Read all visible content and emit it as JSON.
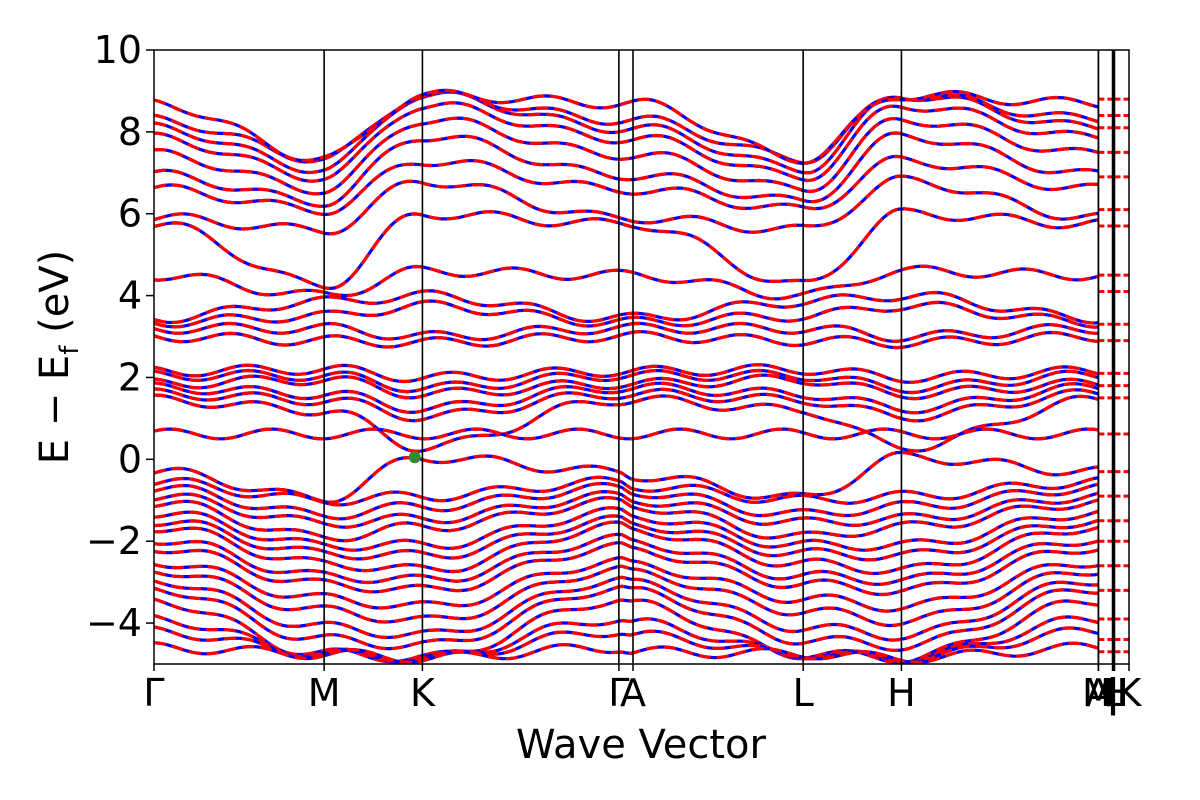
{
  "chart_data": {
    "type": "line",
    "xlabel": "Wave Vector",
    "ylabel_main": "E − E",
    "ylabel_sub": "f",
    "ylabel_unit": " (eV)",
    "ylim": [
      -5,
      10
    ],
    "yticks": [
      10,
      8,
      6,
      4,
      2,
      0,
      -2,
      -4
    ],
    "ytick_labels": [
      "10",
      "8",
      "6",
      "4",
      "2",
      "0",
      "−2",
      "−4"
    ],
    "high_symmetry_points": [
      {
        "label": "Γ",
        "k": 0.0
      },
      {
        "label": "M",
        "k": 0.1745
      },
      {
        "label": "K",
        "k": 0.2753
      },
      {
        "label": "Γ",
        "k": 0.4768
      },
      {
        "label": "A",
        "k": 0.4913
      },
      {
        "label": "L",
        "k": 0.6658
      },
      {
        "label": "H",
        "k": 0.7666
      },
      {
        "label": "A",
        "k": 0.9686
      },
      {
        "label": "M",
        "k": 0.9686
      },
      {
        "label": "|",
        "k": 0.9831
      },
      {
        "label": "L",
        "k": 0.9841
      },
      {
        "label": "|",
        "k": 0.9841
      },
      {
        "label": "H",
        "k": 0.9851
      },
      {
        "label": "K",
        "k": 1.0
      }
    ],
    "xlim": [
      0,
      1
    ],
    "grid": false,
    "series": [
      {
        "color": "#0000ff",
        "style": "solid"
      },
      {
        "color": "#ff0000",
        "style": "dashed"
      }
    ],
    "marker": {
      "x": 0.2674,
      "y": 0.05,
      "color": "#2e8b2e"
    },
    "flat_band_energy": 0.62,
    "band_energies": {
      "valence_at_gamma": [
        -0.3,
        -0.55,
        -0.7,
        -0.9,
        -1.05,
        -1.3,
        -1.5,
        -1.65,
        -1.95,
        -2.15,
        -2.5,
        -2.7,
        -2.95,
        -3.15,
        -3.45,
        -3.9,
        -4.2,
        -4.6
      ],
      "conduction_at_gamma": [
        1.45,
        1.6,
        1.75,
        1.85,
        2.05,
        2.15,
        3.0,
        3.2,
        3.35,
        3.45,
        4.5,
        5.75,
        5.9,
        6.6,
        6.95,
        7.45,
        7.85,
        8.1,
        8.3,
        8.7
      ],
      "valence_at_M": [
        -0.95,
        -1.0,
        -1.35,
        -1.55,
        -1.9,
        -2.1,
        -2.3,
        -2.55,
        -2.85,
        -3.05,
        -3.4,
        -3.7,
        -4.1,
        -4.4,
        -4.75
      ],
      "conduction_at_M": [
        1.2,
        1.45,
        1.6,
        1.95,
        2.05,
        2.2,
        2.9,
        3.2,
        3.5,
        3.85,
        4.0,
        4.25,
        5.6,
        6.1,
        6.3,
        6.6,
        6.9,
        7.1,
        7.35
      ],
      "valence_at_K": [
        0.05,
        -0.9,
        -1.15,
        -1.45,
        -1.65,
        -2.1,
        -2.35,
        -2.7,
        -2.95,
        -3.2,
        -3.6,
        -3.95,
        -4.3,
        -4.55,
        -4.85
      ],
      "conduction_at_K": [
        0.3,
        1.05,
        1.25,
        1.6,
        1.75,
        2.0,
        2.85,
        3.0,
        3.75,
        4.0,
        4.6,
        6.0,
        6.8,
        7.3,
        7.9,
        8.3,
        8.65,
        8.9
      ]
    }
  }
}
